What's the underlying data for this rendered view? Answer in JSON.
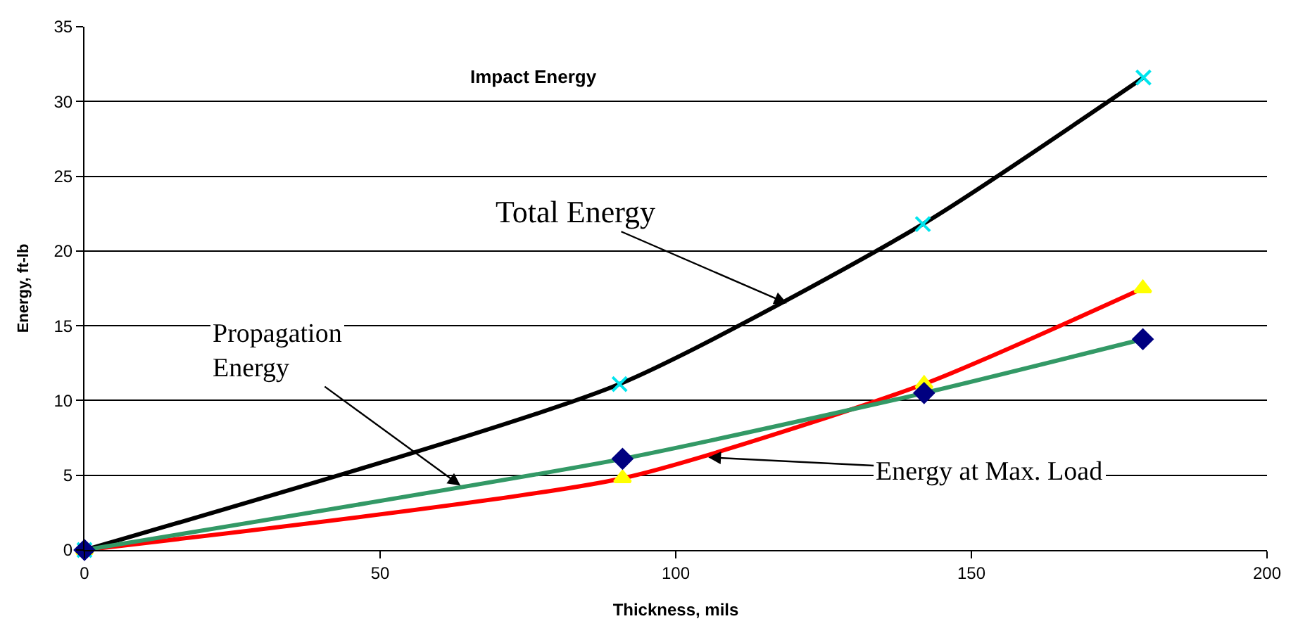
{
  "chart_data": {
    "type": "line",
    "title": "Impact Energy",
    "xlabel": "Thickness, mils",
    "ylabel": "Energy, ft-lb",
    "x": [
      0,
      90.5,
      141.8,
      179.1
    ],
    "series": [
      {
        "color": "#000000",
        "colors": [
          "#00e5ee",
          "#00e5ee",
          "#00e5ee",
          "#00e5ee"
        ],
        "marker": "cross",
        "values": [
          0,
          11.1,
          21.8,
          31.6
        ]
      },
      {
        "color": "#ff0000",
        "colors": [
          "#ffff00",
          "#ffff00",
          "#ffff00",
          "#ffff00"
        ],
        "marker": "triangle",
        "x": [
          0,
          91,
          142,
          179
        ],
        "values": [
          0,
          4.8,
          11.1,
          17.5
        ]
      },
      {
        "color": "#339966",
        "colors": [
          "#000080",
          "#000080",
          "#000080",
          "#000080"
        ],
        "marker": "diamond",
        "x": [
          0,
          91,
          142,
          179
        ],
        "values": [
          0,
          6.1,
          10.5,
          14.1
        ]
      }
    ],
    "annotations": [
      {
        "text": "Total Energy",
        "x": 118.8,
        "y": 16.5
      },
      {
        "text": "Propagation\nEnergy",
        "x": 63.6,
        "y": 4.3
      },
      {
        "text": "Energy at Max. Load",
        "x": 105.5,
        "y": 6.2
      }
    ],
    "xlim": [
      0,
      200
    ],
    "xticks": [
      0,
      50,
      100,
      150,
      200
    ],
    "ylim": [
      0,
      35
    ],
    "yticks": [
      0,
      5,
      10,
      15,
      20,
      25,
      30,
      35
    ],
    "grid": "y"
  }
}
